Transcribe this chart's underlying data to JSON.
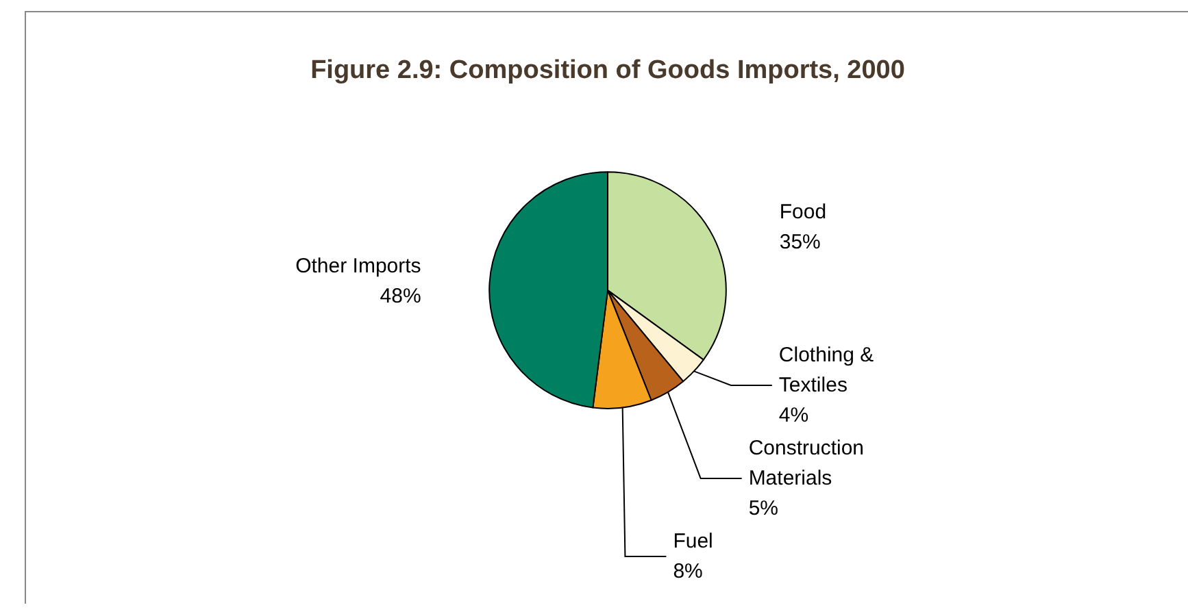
{
  "chart_data": {
    "type": "pie",
    "title": "Figure 2.9: Composition of Goods Imports, 2000",
    "categories": [
      "Food",
      "Clothing &\nTextiles",
      "Construction\nMaterials",
      "Fuel",
      "Other Imports"
    ],
    "values": [
      35,
      4,
      5,
      8,
      48
    ],
    "colors": [
      "#c6e0a0",
      "#fdf3d2",
      "#b8621b",
      "#f5a31f",
      "#008060"
    ],
    "value_labels": [
      "35%",
      "4%",
      "5%",
      "8%",
      "48%"
    ],
    "legend": false
  }
}
